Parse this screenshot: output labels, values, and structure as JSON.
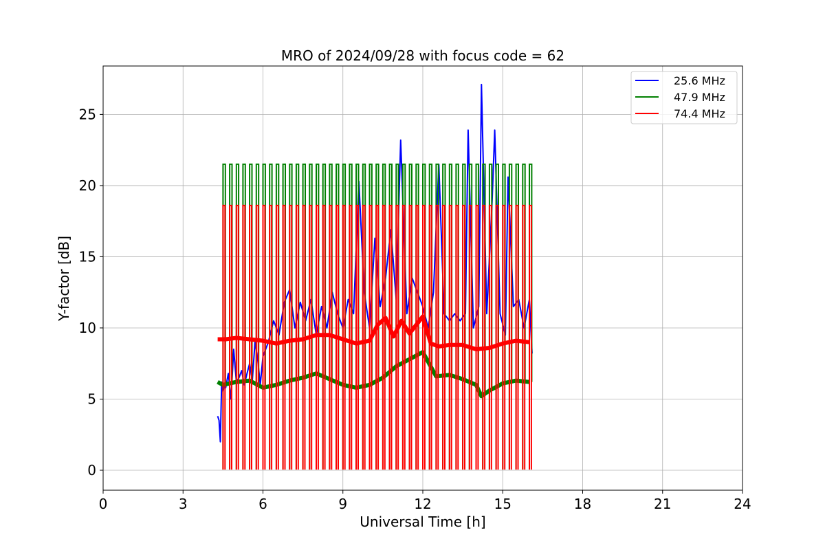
{
  "chart_data": {
    "type": "line",
    "title": "MRO of 2024/09/28 with focus code = 62",
    "xlabel": "Universal Time [h]",
    "ylabel": "Y-factor [dB]",
    "xlim": [
      0,
      24
    ],
    "ylim": [
      -1.4,
      28.4
    ],
    "xticks": [
      0,
      3,
      6,
      9,
      12,
      15,
      18,
      21,
      24
    ],
    "yticks": [
      0,
      5,
      10,
      15,
      20,
      25
    ],
    "grid": true,
    "legend_position": "top-right",
    "series": [
      {
        "name": "25.6 MHz",
        "color": "#0000ff",
        "x": [
          4.3,
          4.35,
          4.4,
          4.45,
          4.5,
          4.55,
          4.6,
          4.7,
          4.8,
          4.9,
          5.0,
          5.1,
          5.2,
          5.3,
          5.4,
          5.5,
          5.6,
          5.7,
          5.8,
          5.9,
          6.0,
          6.2,
          6.4,
          6.6,
          6.8,
          7.0,
          7.2,
          7.4,
          7.6,
          7.8,
          8.0,
          8.2,
          8.4,
          8.6,
          8.8,
          9.0,
          9.2,
          9.4,
          9.6,
          9.8,
          10.0,
          10.2,
          10.4,
          10.6,
          10.8,
          11.0,
          11.17,
          11.4,
          11.6,
          11.8,
          12.0,
          12.2,
          12.4,
          12.6,
          12.8,
          13.0,
          13.2,
          13.4,
          13.6,
          13.7,
          13.9,
          14.1,
          14.2,
          14.4,
          14.6,
          14.7,
          14.9,
          15.1,
          15.2,
          15.4,
          15.6,
          15.8,
          16.0,
          16.1
        ],
        "values": [
          3.8,
          3.5,
          2.0,
          6.2,
          5.5,
          6.0,
          5.8,
          6.8,
          5.0,
          8.5,
          6.2,
          6.5,
          7.0,
          6.0,
          6.8,
          7.5,
          6.3,
          9.0,
          7.8,
          6.0,
          8.0,
          9.0,
          10.5,
          9.5,
          11.8,
          12.7,
          10.0,
          11.8,
          10.5,
          12.0,
          9.5,
          11.5,
          10.0,
          12.5,
          11.0,
          10.0,
          12.0,
          11.0,
          20.3,
          12.5,
          10.0,
          16.3,
          11.5,
          13.5,
          16.9,
          12.0,
          23.2,
          11.0,
          13.5,
          12.5,
          11.5,
          10.0,
          12.5,
          21.5,
          11.0,
          10.5,
          11.0,
          10.5,
          11.0,
          23.9,
          10.0,
          11.5,
          27.1,
          11.0,
          18.9,
          23.9,
          11.0,
          9.5,
          20.6,
          11.5,
          12.0,
          10.0,
          12.0,
          8.2
        ]
      },
      {
        "name": "47.9 MHz",
        "color": "#008000",
        "x": [
          4.3,
          4.5,
          5.0,
          5.5,
          6.0,
          6.5,
          7.0,
          7.5,
          8.0,
          8.5,
          9.0,
          9.5,
          10.0,
          10.5,
          11.0,
          11.5,
          12.0,
          12.5,
          13.0,
          13.5,
          14.0,
          14.2,
          14.5,
          15.0,
          15.5,
          16.0
        ],
        "values": [
          6.2,
          6.0,
          6.2,
          6.3,
          5.8,
          6.0,
          6.3,
          6.5,
          6.8,
          6.4,
          6.0,
          5.8,
          6.0,
          6.5,
          7.3,
          7.8,
          8.3,
          6.6,
          6.7,
          6.4,
          6.0,
          5.2,
          5.6,
          6.1,
          6.3,
          6.2
        ],
        "cal_peak": 21.5
      },
      {
        "name": "74.4 MHz",
        "color": "#ff0000",
        "x": [
          4.3,
          4.6,
          5.0,
          5.5,
          6.0,
          6.5,
          7.0,
          7.5,
          8.0,
          8.5,
          9.0,
          9.5,
          10.0,
          10.3,
          10.6,
          10.9,
          11.2,
          11.5,
          12.0,
          12.3,
          12.6,
          13.0,
          13.5,
          14.0,
          14.5,
          15.0,
          15.5,
          16.0
        ],
        "values": [
          9.2,
          9.2,
          9.3,
          9.2,
          9.1,
          8.9,
          9.1,
          9.2,
          9.5,
          9.5,
          9.2,
          8.9,
          9.1,
          10.2,
          10.7,
          9.4,
          10.5,
          9.6,
          10.8,
          8.9,
          8.7,
          8.8,
          8.8,
          8.5,
          8.6,
          8.9,
          9.1,
          9.0
        ],
        "cal_peak": 18.6
      }
    ],
    "calibration_pulses": {
      "start_h": 4.5,
      "end_h": 16.0,
      "period_h": 0.25,
      "low_value": 0.05
    }
  }
}
